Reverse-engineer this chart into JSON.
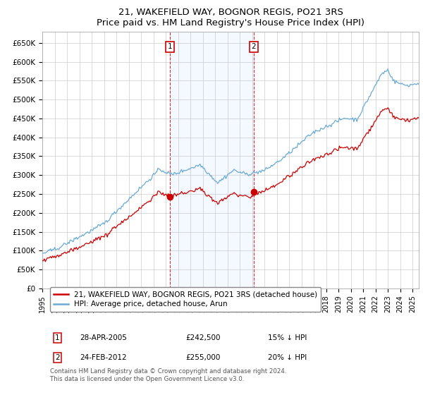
{
  "title": "21, WAKEFIELD WAY, BOGNOR REGIS, PO21 3RS",
  "subtitle": "Price paid vs. HM Land Registry's House Price Index (HPI)",
  "ylim": [
    0,
    680000
  ],
  "sale1_year": 2005.333,
  "sale1_price": 242500,
  "sale1_date_label": "28-APR-2005",
  "sale1_pct": "15% ↓ HPI",
  "sale2_year": 2012.125,
  "sale2_price": 255000,
  "sale2_date_label": "24-FEB-2012",
  "sale2_pct": "20% ↓ HPI",
  "legend_line1": "21, WAKEFIELD WAY, BOGNOR REGIS, PO21 3RS (detached house)",
  "legend_line2": "HPI: Average price, detached house, Arun",
  "footer": "Contains HM Land Registry data © Crown copyright and database right 2024.\nThis data is licensed under the Open Government Licence v3.0.",
  "hpi_color": "#6aaad4",
  "price_color": "#cc0000",
  "background_color": "#ffffff",
  "grid_color": "#cccccc",
  "shade_color": "#ddeeff",
  "xmin": 1995,
  "xmax": 2025.5
}
